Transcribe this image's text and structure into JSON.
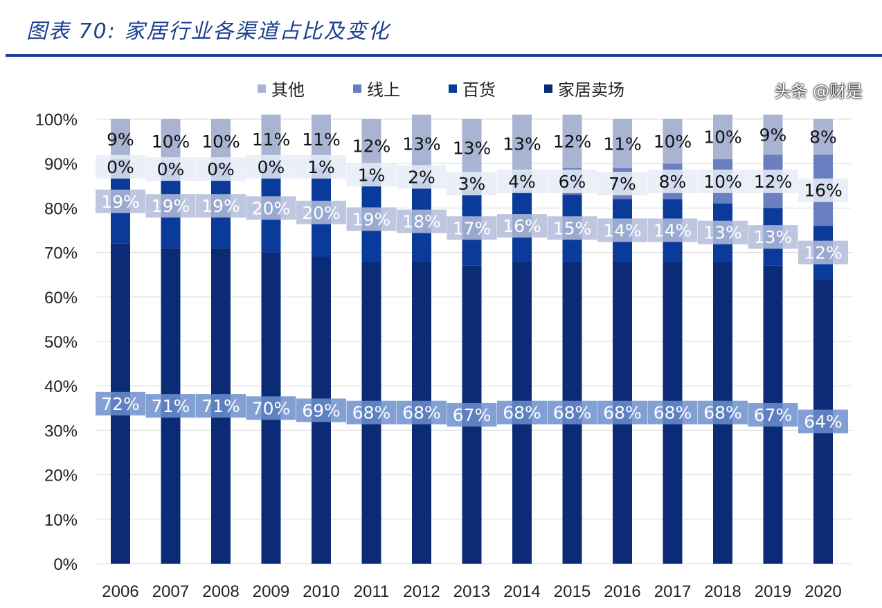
{
  "title": "图表 70:  家居行业各渠道占比及变化",
  "watermark": "头条 @财是",
  "chart_data": {
    "type": "bar",
    "stacked": true,
    "title": "图表 70:  家居行业各渠道占比及变化",
    "categories": [
      "2006",
      "2007",
      "2008",
      "2009",
      "2010",
      "2011",
      "2012",
      "2013",
      "2014",
      "2015",
      "2016",
      "2017",
      "2018",
      "2019",
      "2020"
    ],
    "ylim": [
      0,
      100
    ],
    "yticks": [
      "0%",
      "10%",
      "20%",
      "30%",
      "40%",
      "50%",
      "60%",
      "70%",
      "80%",
      "90%",
      "100%"
    ],
    "grid": true,
    "legend_position": "top",
    "series": [
      {
        "name": "家居卖场",
        "color": "#0b2b76",
        "label_color": "#ffffff",
        "label_box": "#6d8fce",
        "values": [
          72,
          71,
          71,
          70,
          69,
          68,
          68,
          67,
          68,
          68,
          68,
          68,
          68,
          67,
          64
        ]
      },
      {
        "name": "百货",
        "color": "#0a3a9a",
        "label_color": "#ffffff",
        "label_box": "#b3bdd9",
        "values": [
          19,
          19,
          19,
          20,
          20,
          19,
          18,
          17,
          16,
          15,
          14,
          14,
          13,
          13,
          12
        ]
      },
      {
        "name": "线上",
        "color": "#6a7fbf",
        "label_color": "#111111",
        "label_box": "#e6ecf7",
        "values": [
          0,
          0,
          0,
          0,
          1,
          1,
          2,
          3,
          4,
          6,
          7,
          8,
          10,
          12,
          16
        ]
      },
      {
        "name": "其他",
        "color": "#a9b4d2",
        "label_color": "#111111",
        "label_box": "",
        "values": [
          9,
          10,
          10,
          11,
          11,
          12,
          13,
          13,
          13,
          12,
          11,
          10,
          10,
          9,
          8
        ]
      }
    ]
  }
}
